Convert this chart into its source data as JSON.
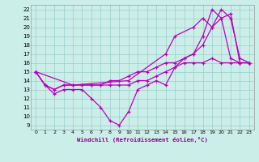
{
  "xlabel": "Windchill (Refroidissement éolien,°C)",
  "background_color": "#cceee8",
  "grid_color": "#99cccc",
  "line_color": "#bb00bb",
  "xlim": [
    -0.5,
    23.5
  ],
  "ylim": [
    8.5,
    22.5
  ],
  "xticks": [
    0,
    1,
    2,
    3,
    4,
    5,
    6,
    7,
    8,
    9,
    10,
    11,
    12,
    13,
    14,
    15,
    16,
    17,
    18,
    19,
    20,
    21,
    22,
    23
  ],
  "yticks": [
    9,
    10,
    11,
    12,
    13,
    14,
    15,
    16,
    17,
    18,
    19,
    20,
    21,
    22
  ],
  "line1_x": [
    0,
    1,
    2,
    3,
    4,
    5,
    6,
    7,
    8,
    9,
    10,
    11,
    12,
    13,
    14,
    15,
    16,
    17,
    18,
    19,
    20,
    21,
    22,
    23
  ],
  "line1_y": [
    15,
    13.5,
    12.5,
    13,
    13,
    13,
    12,
    11,
    9.5,
    9,
    10.5,
    13,
    13.5,
    14,
    13.5,
    15.5,
    16.5,
    17,
    19,
    22,
    21,
    16.5,
    16,
    16
  ],
  "line2_x": [
    0,
    1,
    2,
    3,
    4,
    5,
    6,
    7,
    8,
    9,
    10,
    11,
    12,
    13,
    14,
    15,
    16,
    17,
    18,
    19,
    20,
    21,
    22,
    23
  ],
  "line2_y": [
    15,
    13.5,
    13,
    13.5,
    13.5,
    13.5,
    13.5,
    13.5,
    14,
    14,
    14.5,
    15,
    15,
    15.5,
    16,
    16,
    16.5,
    17,
    18,
    20,
    21,
    21.5,
    16,
    16
  ],
  "line3_x": [
    0,
    4,
    10,
    14,
    15,
    17,
    18,
    19,
    20,
    21,
    22,
    23
  ],
  "line3_y": [
    15,
    13.5,
    14,
    17,
    19,
    20,
    21,
    20,
    22,
    21,
    16.5,
    16
  ],
  "line4_x": [
    0,
    1,
    2,
    3,
    4,
    5,
    6,
    7,
    8,
    9,
    10,
    11,
    12,
    13,
    14,
    15,
    16,
    17,
    18,
    19,
    20,
    21,
    22,
    23
  ],
  "line4_y": [
    15,
    13.5,
    13,
    13.5,
    13.5,
    13.5,
    13.5,
    13.5,
    13.5,
    13.5,
    13.5,
    14,
    14,
    14.5,
    15,
    15.5,
    16,
    16,
    16,
    16.5,
    16,
    16,
    16,
    16
  ]
}
